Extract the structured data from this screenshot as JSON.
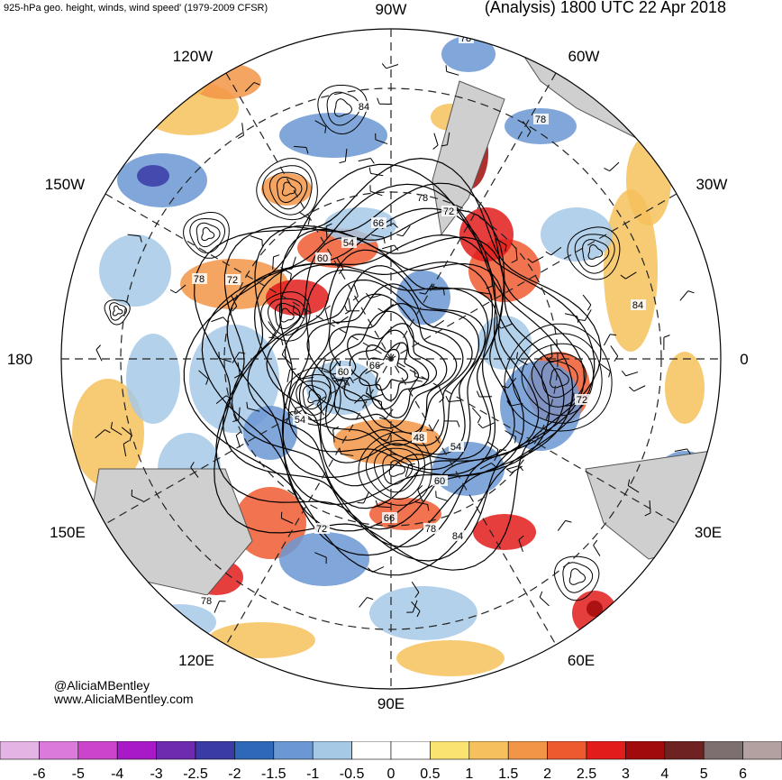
{
  "header": {
    "subtitle": "925-hPa geo. height, winds, wind speed' (1979-2009 CFSR)",
    "title": "(Analysis) 1800 UTC 22 Apr 2018"
  },
  "longitude_labels": {
    "top": "90W",
    "upper_left": "120W",
    "upper_right": "60W",
    "left_upper": "150W",
    "right_upper": "30W",
    "left": "180",
    "right": "0",
    "left_lower": "150E",
    "right_lower": "30E",
    "lower_left": "120E",
    "lower_right": "60E",
    "bottom": "90E"
  },
  "contour_labels": [
    "84",
    "78",
    "78",
    "66",
    "54",
    "60",
    "72",
    "78",
    "72",
    "84",
    "60",
    "66",
    "54",
    "48",
    "54",
    "60",
    "72",
    "66",
    "78",
    "84",
    "78",
    "78",
    "72"
  ],
  "credits": {
    "twitter": "@AliciaMBentley",
    "website": "www.AliciaMBentley.com"
  },
  "colorbar": {
    "ticks": [
      "-6",
      "-5",
      "-4",
      "-3",
      "-2.5",
      "-2",
      "-1.5",
      "-1",
      "-0.5",
      "0",
      "0.5",
      "1",
      "1.5",
      "2",
      "2.5",
      "3",
      "4",
      "5",
      "6"
    ],
    "colors": [
      "#e4b4e4",
      "#da7ada",
      "#cc44cc",
      "#a819c8",
      "#6e2bb0",
      "#3b3ba6",
      "#2f68b8",
      "#6b98d4",
      "#a6c9e6",
      "#ffffff",
      "#ffffff",
      "#fbe372",
      "#f6c15c",
      "#f29546",
      "#ee5a30",
      "#e21b1b",
      "#a20b0b",
      "#6e2222",
      "#7d6f6f",
      "#b3a1a1"
    ]
  }
}
